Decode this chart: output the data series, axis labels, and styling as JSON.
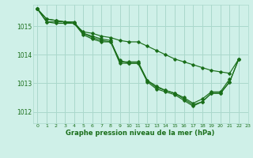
{
  "title": "Graphe pression niveau de la mer (hPa)",
  "background_color": "#cff0e8",
  "grid_color": "#aad8cc",
  "line_color": "#1a6e1a",
  "xlim": [
    -0.5,
    23
  ],
  "ylim": [
    1011.6,
    1015.75
  ],
  "xticks": [
    0,
    1,
    2,
    3,
    4,
    5,
    6,
    7,
    8,
    9,
    10,
    11,
    12,
    13,
    14,
    15,
    16,
    17,
    18,
    19,
    20,
    21,
    22,
    23
  ],
  "yticks": [
    1012,
    1013,
    1014,
    1015
  ],
  "series": [
    [
      1015.6,
      1015.25,
      1015.2,
      1015.15,
      1015.1,
      1014.8,
      1014.75,
      1014.65,
      1014.6,
      1014.5,
      1014.45,
      1014.45,
      1014.3,
      1014.15,
      1014.0,
      1013.85,
      1013.75,
      1013.65,
      1013.55,
      1013.45,
      1013.4,
      1013.35,
      1013.85,
      null
    ],
    [
      1015.6,
      1015.25,
      1015.2,
      1015.15,
      1015.15,
      1014.75,
      1014.65,
      1014.55,
      1014.5,
      1013.75,
      1013.75,
      1013.75,
      1013.1,
      1012.9,
      1012.75,
      1012.65,
      1012.5,
      1012.3,
      1012.45,
      1012.7,
      1012.7,
      1013.15,
      null,
      null
    ],
    [
      1015.6,
      1015.15,
      1015.1,
      1015.1,
      1015.1,
      1014.7,
      1014.55,
      1014.45,
      1014.45,
      1013.7,
      1013.7,
      1013.7,
      1013.05,
      1012.8,
      1012.7,
      1012.6,
      1012.4,
      1012.2,
      1012.35,
      1012.65,
      1012.65,
      1013.05,
      1013.85,
      null
    ],
    [
      1015.6,
      1015.15,
      1015.15,
      1015.15,
      1015.1,
      1014.75,
      1014.6,
      1014.5,
      1014.45,
      1013.8,
      1013.7,
      1013.7,
      1013.1,
      1012.85,
      1012.75,
      1012.65,
      1012.45,
      1012.25,
      1012.35,
      1012.65,
      1012.65,
      1013.05,
      1013.85,
      null
    ]
  ]
}
